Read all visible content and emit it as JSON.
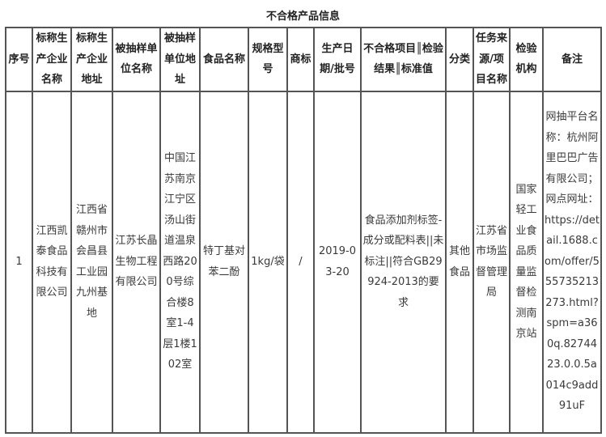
{
  "title": "不合格产品信息",
  "columns": [
    "序号",
    "标称生产企业名称",
    "标称生产企业地址",
    "被抽样单位名称",
    "被抽样单位地址",
    "食品名称",
    "规格型号",
    "商标",
    "生产日期/批号",
    "不合格项目║检验结果║标准值",
    "分类",
    "任务来源/项目名称",
    "检验机构",
    "备注"
  ],
  "rows": [
    [
      "1",
      "江西凯泰食品科技有限公司",
      "江西省赣州市会昌县工业园九州基地",
      "江苏长晶生物工程有限公司",
      "中国江苏南京江宁区汤山街道温泉西路200号综合楼8室1-4层1楼102室",
      "特丁基对苯二酚",
      "1kg/袋",
      "/",
      "2019-03-20",
      "食品添加剂标签-成分或配料表||未标注||符合GB29924-2013的要求",
      "其他食品",
      "江苏省市场监督管理局",
      "国家轻工业食品质量监督检测南京站",
      "网抽平台名称：杭州阿里巴巴广告有限公司；网点网址：https://detail.1688.com/offer/555735213273.html?spm=a360q.8274423.0.0.5a014c9add91uF"
    ]
  ]
}
